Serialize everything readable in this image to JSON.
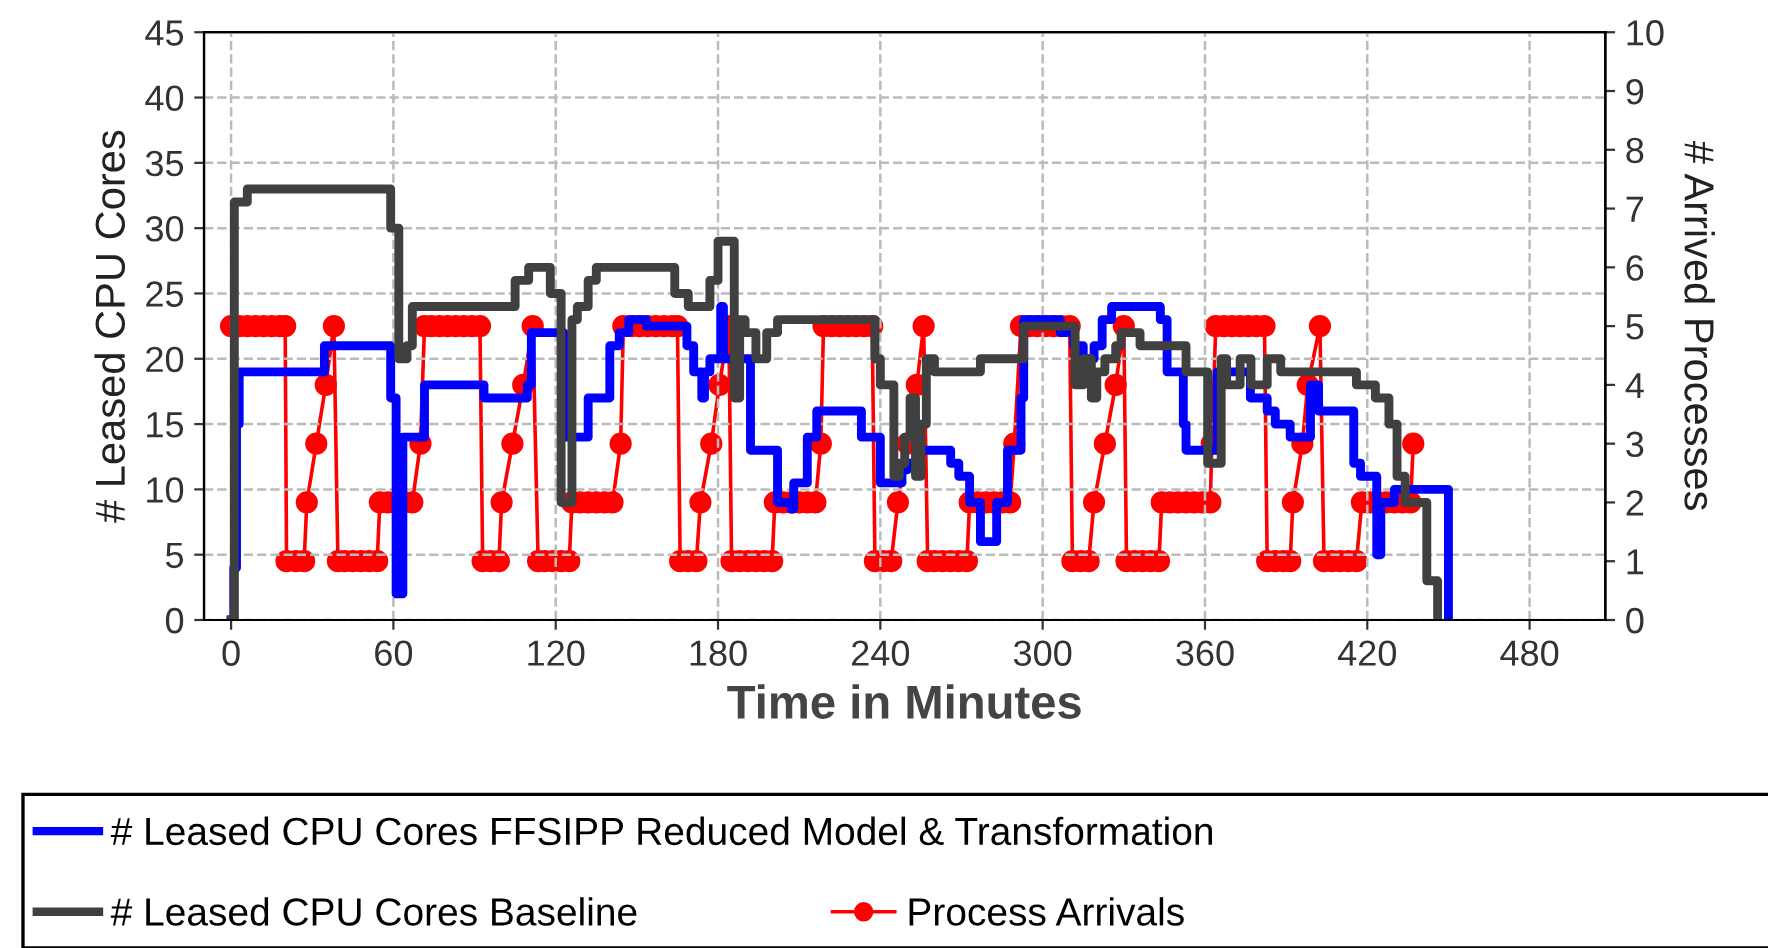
{
  "chart_data": {
    "type": "step",
    "xlabel": "Time in Minutes",
    "ylabel": "# Leased CPU Cores",
    "y2label": "# Arrived Processes",
    "xlim": [
      -10,
      508
    ],
    "xticks": [
      0,
      60,
      120,
      180,
      240,
      300,
      360,
      420,
      480
    ],
    "ylim": [
      0,
      45
    ],
    "yticks": [
      0,
      5,
      10,
      15,
      20,
      25,
      30,
      35,
      40,
      45
    ],
    "y2lim": [
      0,
      10
    ],
    "y2ticks": [
      0,
      1,
      2,
      3,
      4,
      5,
      6,
      7,
      8,
      9,
      10
    ],
    "grid": true,
    "legend": "bottom",
    "series": [
      {
        "name": "# Leased CPU Cores FFSIPP Reduced Model & Transformation",
        "color": "#0000ff",
        "line_style": "solid",
        "marker": "none",
        "x": [
          0,
          1,
          2,
          3,
          34.5,
          59,
          61,
          63.5,
          71.5,
          93.5,
          109.5,
          111,
          123,
          132,
          140,
          143.5,
          147,
          153.5,
          168.5,
          171,
          174,
          175,
          177,
          181,
          182,
          192,
          202,
          207,
          208,
          213,
          216.5,
          233,
          240,
          248,
          250,
          254,
          266,
          269,
          273,
          277,
          283,
          287,
          292,
          293,
          306.5,
          311.5,
          315,
          319,
          322,
          325.5,
          343.5,
          346,
          352,
          353,
          364.5,
          376.8,
          383,
          386,
          391.5,
          399,
          402,
          415,
          417.5,
          423.5,
          425,
          430,
          450
        ],
        "values": [
          0,
          4,
          15,
          19,
          21,
          17,
          2,
          14,
          18,
          17,
          18,
          22,
          14,
          17,
          21,
          22,
          23,
          22.5,
          21,
          19,
          17,
          19,
          20,
          24,
          20,
          13,
          9,
          8.5,
          10.5,
          14,
          16,
          14,
          10.5,
          11.5,
          12,
          13,
          12,
          11,
          9,
          6,
          9,
          13,
          17,
          23,
          22,
          21,
          20,
          21,
          23,
          24,
          23,
          19,
          15,
          13,
          19,
          17,
          16,
          15,
          14,
          18,
          16,
          12,
          11,
          5,
          9,
          10,
          0
        ]
      },
      {
        "name": "# Leased CPU Cores Baseline",
        "color": "#404040",
        "line_style": "solid",
        "marker": "none",
        "x": [
          0,
          1.2,
          6,
          59,
          62,
          65,
          67,
          105,
          110,
          118,
          122,
          126,
          128,
          132,
          135,
          164,
          169,
          177,
          180,
          186,
          188,
          190,
          194,
          198,
          202,
          238,
          240,
          245,
          247,
          249,
          251,
          253,
          255,
          257,
          260,
          277,
          293,
          312,
          315,
          318,
          320,
          323,
          327,
          329,
          336,
          353,
          361,
          366,
          368,
          373,
          377,
          383,
          388,
          416,
          423,
          428,
          431,
          434,
          442,
          446
        ],
        "values": [
          0,
          32,
          33,
          30,
          20,
          21,
          24,
          26,
          27,
          25,
          9,
          23,
          24,
          26,
          27,
          25,
          24,
          26,
          29,
          17,
          23,
          22,
          20,
          22,
          23,
          20,
          18,
          11,
          12,
          14,
          17,
          11,
          15,
          20,
          19,
          20,
          22.5,
          18,
          20,
          17,
          19,
          20,
          21,
          22,
          21,
          19,
          12,
          20,
          18,
          20,
          18,
          20,
          19,
          18,
          17,
          15,
          11,
          9,
          3,
          0
        ]
      },
      {
        "name": "Process Arrivals",
        "type": "line",
        "axis": "y2",
        "color": "#ff0000",
        "line_style": "solid",
        "marker": "circle",
        "x": [
          0,
          3,
          6,
          9,
          12,
          15,
          18,
          20,
          20.5,
          24,
          27,
          28,
          31.5,
          35,
          38,
          39.5,
          42,
          45,
          48,
          51,
          54,
          55,
          58,
          61,
          64,
          67,
          70,
          71.5,
          74,
          77,
          80,
          83,
          86,
          89,
          92,
          93,
          96,
          99,
          100,
          104,
          108,
          111.5,
          113.5,
          116,
          119,
          122,
          125,
          126,
          129,
          132,
          135,
          138,
          141,
          144,
          145,
          148,
          151,
          154,
          157,
          160,
          163,
          165,
          166,
          169,
          172,
          173.5,
          177.5,
          180.5,
          184,
          185,
          188,
          191,
          194,
          197,
          200,
          201,
          204,
          207,
          210,
          213,
          216,
          218,
          219,
          222,
          225,
          228,
          231,
          234,
          237,
          238,
          241,
          244,
          246.5,
          250,
          253.5,
          256,
          257.5,
          260,
          263,
          266,
          269,
          272,
          273,
          276,
          279,
          282,
          285,
          288,
          289.5,
          292,
          295,
          298,
          301,
          304,
          307,
          310,
          311,
          314,
          317,
          319,
          323,
          327,
          330,
          331,
          334,
          337,
          340,
          343,
          344,
          347,
          350,
          353,
          356,
          359,
          362,
          362.5,
          364,
          367,
          370,
          373,
          376,
          379,
          382,
          383,
          386,
          389,
          391.5,
          392.5,
          396,
          398,
          402.5,
          404,
          407,
          410,
          413,
          416,
          418,
          421,
          424,
          427,
          430,
          433,
          436,
          437
        ],
        "values": [
          5,
          5,
          5,
          5,
          5,
          5,
          5,
          5,
          1,
          1,
          1,
          2,
          3,
          4,
          5,
          1,
          1,
          1,
          1,
          1,
          1,
          2,
          2,
          2,
          2,
          2,
          3,
          5,
          5,
          5,
          5,
          5,
          5,
          5,
          5,
          1,
          1,
          1,
          2,
          3,
          4,
          5,
          1,
          1,
          1,
          1,
          1,
          2,
          2,
          2,
          2,
          2,
          2,
          3,
          5,
          5,
          5,
          5,
          5,
          5,
          5,
          5,
          1,
          1,
          1,
          2,
          3,
          4,
          5,
          1,
          1,
          1,
          1,
          1,
          1,
          2,
          2,
          2,
          2,
          2,
          2,
          3,
          5,
          5,
          5,
          5,
          5,
          5,
          5,
          1,
          1,
          1,
          2,
          3,
          4,
          5,
          1,
          1,
          1,
          1,
          1,
          1,
          2,
          2,
          2,
          2,
          2,
          2,
          3,
          5,
          5,
          5,
          5,
          5,
          5,
          5,
          1,
          1,
          1,
          2,
          3,
          4,
          5,
          1,
          1,
          1,
          1,
          1,
          2,
          2,
          2,
          2,
          2,
          2,
          2,
          3,
          5,
          5,
          5,
          5,
          5,
          5,
          5,
          1,
          1,
          1,
          1,
          2,
          3,
          4,
          5,
          1,
          1,
          1,
          1,
          1,
          2,
          2,
          2,
          2,
          2,
          2,
          2,
          3
        ]
      }
    ]
  }
}
